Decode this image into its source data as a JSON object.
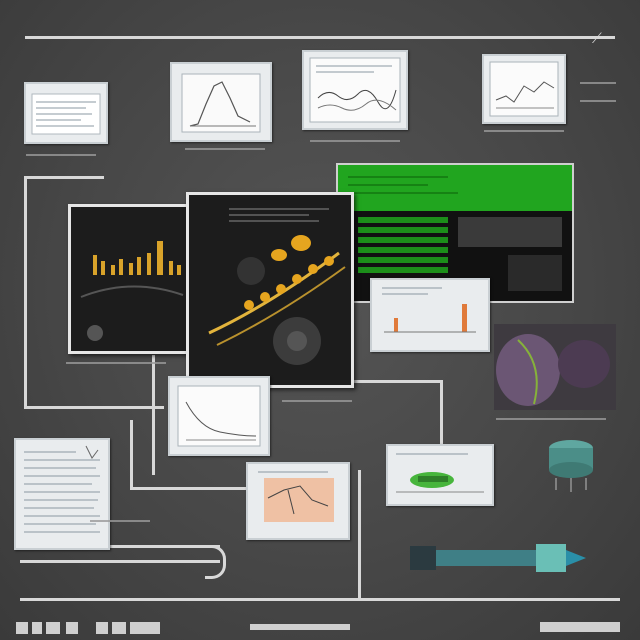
{
  "board": {
    "background": "#474747",
    "accent_green": "#21a51f",
    "accent_gold": "#d9a32a"
  },
  "bottom_strip": {
    "labels": []
  }
}
